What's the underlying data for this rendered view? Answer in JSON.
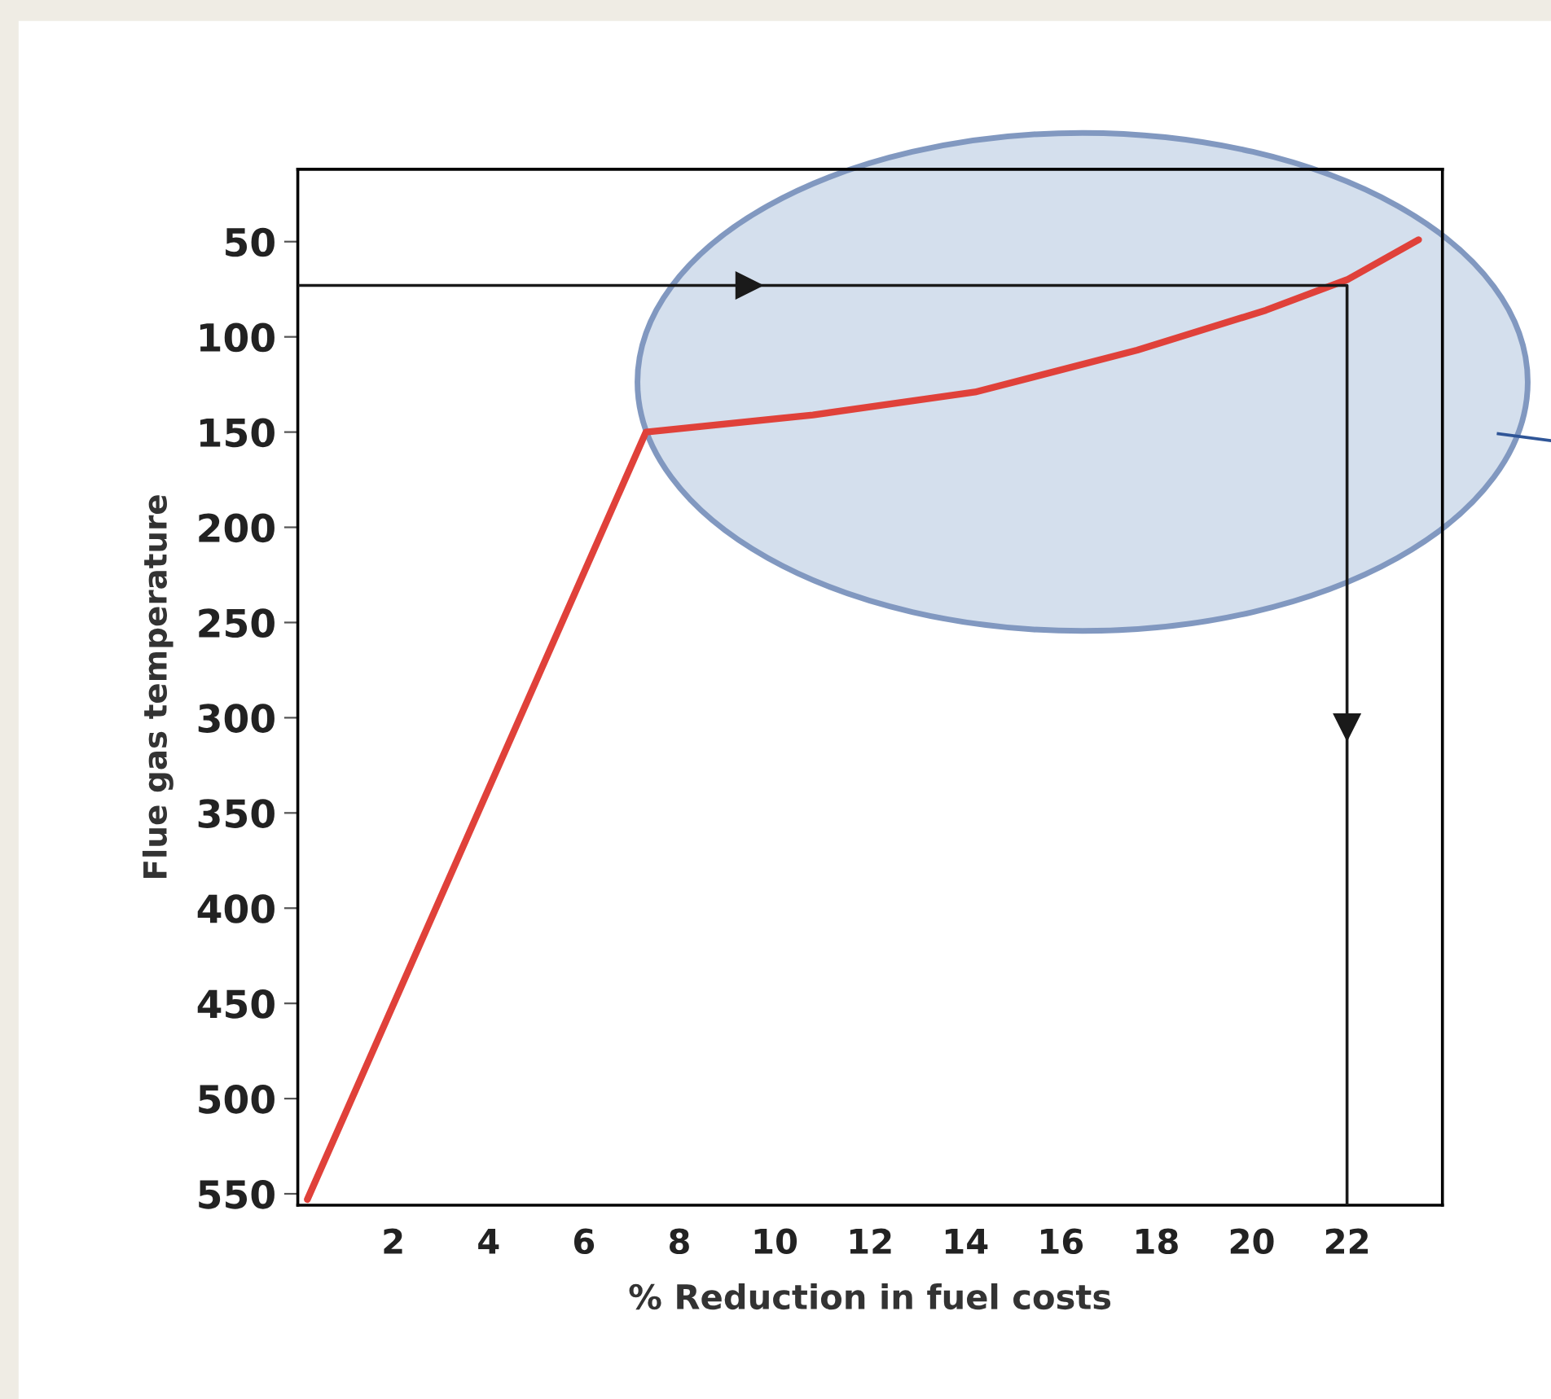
{
  "chart_data": {
    "type": "line",
    "xlabel": "% Reduction in fuel costs",
    "ylabel": "Flue gas temperature",
    "xlim": [
      0,
      24
    ],
    "xticks": [
      2,
      4,
      6,
      8,
      10,
      12,
      14,
      16,
      18,
      20,
      22
    ],
    "ylim": [
      556,
      12
    ],
    "yticks": [
      50,
      100,
      150,
      200,
      250,
      300,
      350,
      400,
      450,
      500,
      550
    ],
    "grid": false,
    "legend": false,
    "marker": "none",
    "line_style": "solid",
    "series": [
      {
        "color": "#e0413a",
        "x": [
          0.2,
          7.3,
          10.8,
          14.2,
          17.6,
          20.3,
          22,
          23.5
        ],
        "values": [
          553,
          150,
          141,
          129,
          107,
          86,
          70,
          49
        ]
      },
      {
        "color": "#1a1a1a",
        "x": [
          0,
          22,
          22
        ],
        "values": [
          73,
          73,
          556
        ]
      }
    ]
  }
}
